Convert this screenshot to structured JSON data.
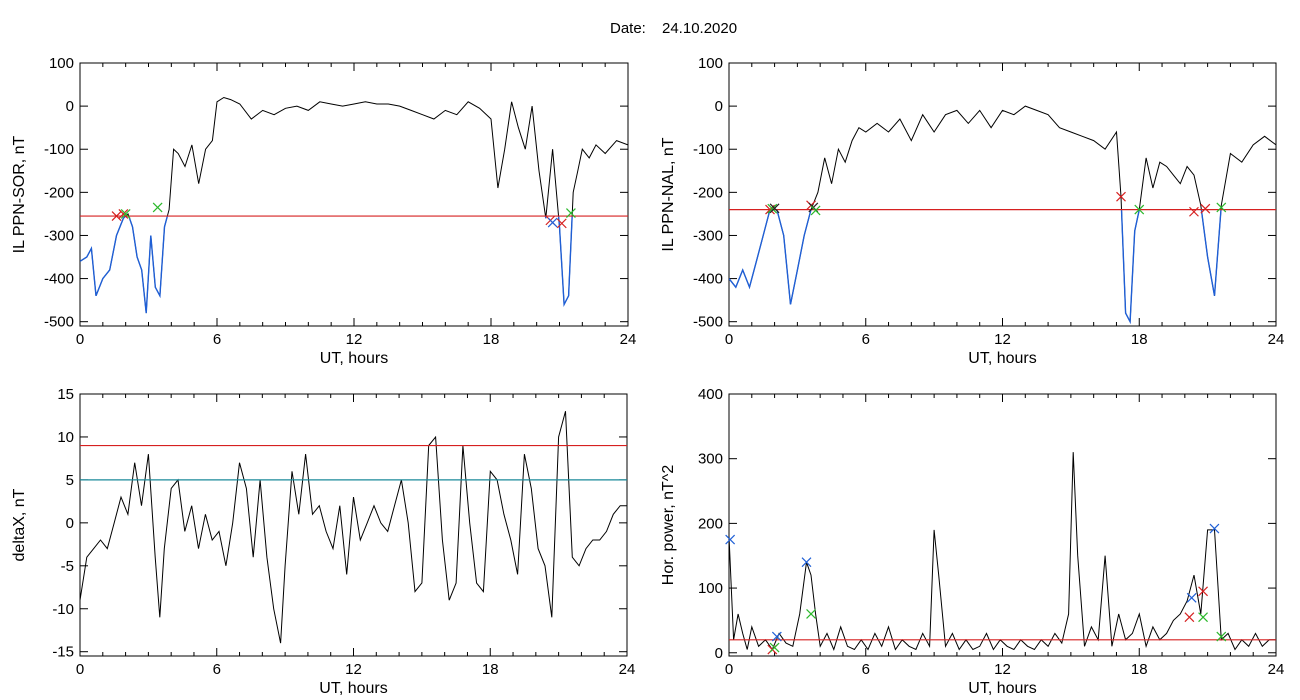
{
  "title_prefix": "Date:",
  "date": "24.10.2020",
  "colors": {
    "trace": "#000000",
    "highlight": "#1f5fd6",
    "threshold_red": "#d62020",
    "threshold_teal": "#1a8a9a",
    "cross_red": "#d62020",
    "cross_green": "#2ab82a",
    "cross_blue": "#1f5fd6",
    "cross_black": "#222222"
  },
  "chart_data": [
    {
      "type": "line",
      "xlabel": "UT, hours",
      "ylabel": "IL PPN-SOR, nT",
      "xlim": [
        0,
        24
      ],
      "ylim": [
        -510,
        100
      ],
      "xticks": [
        0,
        6,
        12,
        18,
        24
      ],
      "yticks": [
        -500,
        -400,
        -300,
        -200,
        -100,
        0,
        100
      ],
      "threshold": -255,
      "threshold_color": "red",
      "below_threshold_highlight": true,
      "series": [
        {
          "x": [
            0,
            0.3,
            0.5,
            0.7,
            1.0,
            1.3,
            1.6,
            1.9,
            2.1,
            2.3,
            2.5,
            2.7,
            2.9,
            3.1,
            3.3,
            3.5,
            3.7,
            3.9,
            4.1,
            4.3,
            4.6,
            4.9,
            5.2,
            5.5,
            5.8,
            6.0,
            6.3,
            6.6,
            7.0,
            7.5,
            8.0,
            8.5,
            9.0,
            9.5,
            10.0,
            10.5,
            11.0,
            11.5,
            12.0,
            12.5,
            13.0,
            13.5,
            14.0,
            14.5,
            15.0,
            15.5,
            16.0,
            16.5,
            17.0,
            17.5,
            18.0,
            18.3,
            18.6,
            18.9,
            19.2,
            19.5,
            19.8,
            20.1,
            20.4,
            20.7,
            21.0,
            21.2,
            21.4,
            21.6,
            21.8,
            22.0,
            22.3,
            22.6,
            23.0,
            23.5,
            24.0
          ],
          "y": [
            -360,
            -350,
            -330,
            -440,
            -400,
            -380,
            -300,
            -260,
            -250,
            -280,
            -350,
            -380,
            -480,
            -300,
            -420,
            -440,
            -280,
            -240,
            -100,
            -110,
            -140,
            -90,
            -180,
            -100,
            -80,
            10,
            20,
            15,
            5,
            -30,
            -10,
            -20,
            -5,
            0,
            -10,
            10,
            5,
            0,
            5,
            10,
            5,
            5,
            0,
            -10,
            -20,
            -30,
            -10,
            -20,
            10,
            -5,
            -30,
            -190,
            -100,
            10,
            -50,
            -100,
            0,
            -150,
            -260,
            -100,
            -280,
            -460,
            -440,
            -200,
            -150,
            -100,
            -120,
            -90,
            -110,
            -80,
            -90
          ]
        }
      ],
      "markers": [
        {
          "x": 1.6,
          "y": -255,
          "color": "red"
        },
        {
          "x": 1.9,
          "y": -250,
          "color": "red"
        },
        {
          "x": 2.0,
          "y": -250,
          "color": "green"
        },
        {
          "x": 3.4,
          "y": -235,
          "color": "green"
        },
        {
          "x": 20.6,
          "y": -265,
          "color": "red"
        },
        {
          "x": 20.7,
          "y": -270,
          "color": "blue"
        },
        {
          "x": 21.1,
          "y": -272,
          "color": "red"
        },
        {
          "x": 21.5,
          "y": -248,
          "color": "green"
        }
      ]
    },
    {
      "type": "line",
      "xlabel": "UT, hours",
      "ylabel": "IL PPN-NAL, nT",
      "xlim": [
        0,
        24
      ],
      "ylim": [
        -510,
        100
      ],
      "xticks": [
        0,
        6,
        12,
        18,
        24
      ],
      "yticks": [
        -500,
        -400,
        -300,
        -200,
        -100,
        0,
        100
      ],
      "threshold": -240,
      "threshold_color": "red",
      "below_threshold_highlight": true,
      "series": [
        {
          "x": [
            0,
            0.3,
            0.6,
            0.9,
            1.2,
            1.5,
            1.8,
            2.1,
            2.4,
            2.7,
            3.0,
            3.3,
            3.6,
            3.9,
            4.2,
            4.5,
            4.8,
            5.1,
            5.4,
            5.7,
            6.0,
            6.5,
            7.0,
            7.5,
            8.0,
            8.5,
            9.0,
            9.5,
            10.0,
            10.5,
            11.0,
            11.5,
            12.0,
            12.5,
            13.0,
            13.5,
            14.0,
            14.5,
            15.0,
            15.5,
            16.0,
            16.5,
            17.0,
            17.2,
            17.4,
            17.6,
            17.8,
            18.0,
            18.3,
            18.6,
            18.9,
            19.2,
            19.5,
            19.8,
            20.1,
            20.4,
            20.7,
            21.0,
            21.3,
            21.6,
            22.0,
            22.5,
            23.0,
            23.5,
            24.0
          ],
          "y": [
            -400,
            -420,
            -380,
            -420,
            -360,
            -300,
            -240,
            -240,
            -300,
            -460,
            -380,
            -300,
            -240,
            -200,
            -120,
            -180,
            -100,
            -130,
            -80,
            -50,
            -60,
            -40,
            -60,
            -30,
            -80,
            -20,
            -60,
            -20,
            -10,
            -40,
            -10,
            -50,
            -10,
            -20,
            0,
            -10,
            -20,
            -50,
            -60,
            -70,
            -80,
            -100,
            -60,
            -210,
            -480,
            -500,
            -290,
            -240,
            -120,
            -190,
            -130,
            -140,
            -160,
            -180,
            -140,
            -160,
            -230,
            -350,
            -440,
            -230,
            -110,
            -130,
            -90,
            -70,
            -90
          ]
        }
      ],
      "markers": [
        {
          "x": 1.8,
          "y": -240,
          "color": "red"
        },
        {
          "x": 1.9,
          "y": -238,
          "color": "green"
        },
        {
          "x": 2.0,
          "y": -237,
          "color": "black"
        },
        {
          "x": 3.6,
          "y": -230,
          "color": "red"
        },
        {
          "x": 3.7,
          "y": -235,
          "color": "black"
        },
        {
          "x": 3.8,
          "y": -242,
          "color": "green"
        },
        {
          "x": 17.2,
          "y": -210,
          "color": "red"
        },
        {
          "x": 18.0,
          "y": -240,
          "color": "green"
        },
        {
          "x": 20.4,
          "y": -245,
          "color": "red"
        },
        {
          "x": 20.9,
          "y": -238,
          "color": "red"
        },
        {
          "x": 21.6,
          "y": -235,
          "color": "green"
        }
      ]
    },
    {
      "type": "line",
      "xlabel": "UT, hours",
      "ylabel": "deltaX, nT",
      "xlim": [
        0,
        24
      ],
      "ylim": [
        -15.5,
        15
      ],
      "xticks": [
        0,
        6,
        12,
        18,
        24
      ],
      "yticks": [
        -15,
        -10,
        -5,
        0,
        5,
        10,
        15
      ],
      "thresholds": [
        {
          "value": 9,
          "color": "red"
        },
        {
          "value": 5,
          "color": "teal"
        }
      ],
      "series": [
        {
          "x": [
            0,
            0.3,
            0.6,
            0.9,
            1.2,
            1.5,
            1.8,
            2.1,
            2.4,
            2.7,
            3.0,
            3.3,
            3.5,
            3.7,
            4.0,
            4.3,
            4.6,
            4.9,
            5.2,
            5.5,
            5.8,
            6.1,
            6.4,
            6.7,
            7.0,
            7.3,
            7.6,
            7.9,
            8.2,
            8.5,
            8.8,
            9.0,
            9.3,
            9.6,
            9.9,
            10.2,
            10.5,
            10.8,
            11.1,
            11.4,
            11.7,
            12.0,
            12.3,
            12.6,
            12.9,
            13.2,
            13.5,
            13.8,
            14.1,
            14.4,
            14.7,
            15.0,
            15.3,
            15.6,
            15.9,
            16.2,
            16.5,
            16.8,
            17.1,
            17.4,
            17.7,
            18.0,
            18.3,
            18.6,
            18.9,
            19.2,
            19.5,
            19.8,
            20.1,
            20.4,
            20.7,
            21.0,
            21.3,
            21.6,
            21.9,
            22.2,
            22.5,
            22.8,
            23.1,
            23.4,
            23.7,
            24.0
          ],
          "y": [
            -9,
            -4,
            -3,
            -2,
            -3,
            0,
            3,
            1,
            7,
            2,
            8,
            -4,
            -11,
            -3,
            4,
            5,
            -1,
            2,
            -3,
            1,
            -2,
            -1,
            -5,
            0,
            7,
            4,
            -4,
            5,
            -4,
            -10,
            -14,
            -5,
            6,
            1,
            8,
            1,
            2,
            -1,
            -3,
            2,
            -6,
            3,
            -2,
            0,
            2,
            0,
            -1,
            2,
            5,
            0,
            -8,
            -7,
            9,
            10,
            -2,
            -9,
            -7,
            9,
            0,
            -7,
            -8,
            6,
            5,
            1,
            -2,
            -6,
            8,
            4,
            -3,
            -5,
            -11,
            10,
            13,
            -4,
            -5,
            -3,
            -2,
            -2,
            -1,
            1,
            2,
            2
          ]
        }
      ]
    },
    {
      "type": "line",
      "xlabel": "UT, hours",
      "ylabel": "Hor. power, nT^2",
      "xlim": [
        0,
        24
      ],
      "ylim": [
        -5,
        400
      ],
      "xticks": [
        0,
        6,
        12,
        18,
        24
      ],
      "yticks": [
        0,
        100,
        200,
        300,
        400
      ],
      "threshold": 20,
      "threshold_color": "red",
      "series": [
        {
          "x": [
            0,
            0.2,
            0.4,
            0.6,
            0.8,
            1.0,
            1.3,
            1.6,
            1.9,
            2.2,
            2.5,
            2.8,
            3.1,
            3.4,
            3.6,
            3.8,
            4.0,
            4.3,
            4.6,
            4.9,
            5.2,
            5.5,
            5.8,
            6.1,
            6.4,
            6.7,
            7.0,
            7.3,
            7.6,
            7.9,
            8.2,
            8.5,
            8.8,
            9.0,
            9.2,
            9.5,
            9.8,
            10.1,
            10.4,
            10.7,
            11.0,
            11.3,
            11.6,
            11.9,
            12.2,
            12.5,
            12.8,
            13.1,
            13.4,
            13.7,
            14.0,
            14.3,
            14.6,
            14.9,
            15.1,
            15.3,
            15.6,
            15.9,
            16.2,
            16.5,
            16.8,
            17.1,
            17.4,
            17.7,
            18.0,
            18.3,
            18.6,
            18.9,
            19.2,
            19.5,
            19.8,
            20.1,
            20.4,
            20.7,
            21.0,
            21.3,
            21.6,
            21.9,
            22.2,
            22.5,
            22.8,
            23.1,
            23.4,
            23.7,
            24.0
          ],
          "y": [
            180,
            20,
            60,
            30,
            5,
            40,
            10,
            20,
            5,
            30,
            15,
            10,
            60,
            140,
            120,
            60,
            10,
            30,
            5,
            40,
            10,
            5,
            20,
            5,
            30,
            10,
            40,
            5,
            20,
            10,
            5,
            30,
            10,
            190,
            120,
            10,
            30,
            5,
            20,
            5,
            10,
            30,
            5,
            20,
            10,
            5,
            20,
            10,
            5,
            20,
            10,
            30,
            15,
            60,
            310,
            150,
            10,
            40,
            20,
            150,
            10,
            60,
            20,
            30,
            60,
            10,
            40,
            20,
            30,
            50,
            60,
            80,
            120,
            60,
            190,
            190,
            20,
            30,
            5,
            20,
            10,
            30,
            10,
            20,
            20
          ]
        }
      ],
      "markers": [
        {
          "x": 0.05,
          "y": 175,
          "color": "blue"
        },
        {
          "x": 1.9,
          "y": 5,
          "color": "red"
        },
        {
          "x": 2.0,
          "y": 8,
          "color": "green"
        },
        {
          "x": 2.1,
          "y": 25,
          "color": "blue"
        },
        {
          "x": 3.4,
          "y": 140,
          "color": "blue"
        },
        {
          "x": 3.6,
          "y": 60,
          "color": "green"
        },
        {
          "x": 20.2,
          "y": 55,
          "color": "red"
        },
        {
          "x": 20.3,
          "y": 85,
          "color": "blue"
        },
        {
          "x": 20.8,
          "y": 95,
          "color": "red"
        },
        {
          "x": 20.8,
          "y": 55,
          "color": "green"
        },
        {
          "x": 21.3,
          "y": 192,
          "color": "blue"
        },
        {
          "x": 21.6,
          "y": 25,
          "color": "green"
        }
      ]
    }
  ]
}
